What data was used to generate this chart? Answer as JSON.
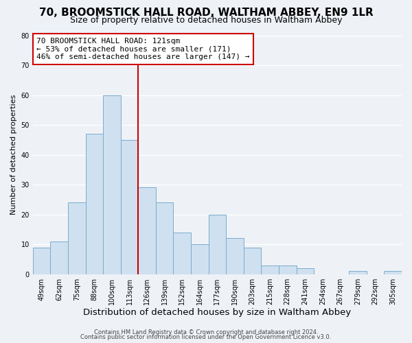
{
  "title1": "70, BROOMSTICK HALL ROAD, WALTHAM ABBEY, EN9 1LR",
  "title2": "Size of property relative to detached houses in Waltham Abbey",
  "xlabel": "Distribution of detached houses by size in Waltham Abbey",
  "ylabel": "Number of detached properties",
  "footer1": "Contains HM Land Registry data © Crown copyright and database right 2024.",
  "footer2": "Contains public sector information licensed under the Open Government Licence v3.0.",
  "bin_labels": [
    "49sqm",
    "62sqm",
    "75sqm",
    "88sqm",
    "100sqm",
    "113sqm",
    "126sqm",
    "139sqm",
    "152sqm",
    "164sqm",
    "177sqm",
    "190sqm",
    "203sqm",
    "215sqm",
    "228sqm",
    "241sqm",
    "254sqm",
    "267sqm",
    "279sqm",
    "292sqm",
    "305sqm"
  ],
  "bin_values": [
    9,
    11,
    24,
    47,
    60,
    45,
    29,
    24,
    14,
    10,
    20,
    12,
    9,
    3,
    3,
    2,
    0,
    0,
    1,
    0,
    1
  ],
  "bar_color": "#cfe0f0",
  "bar_edge_color": "#7aaccc",
  "vline_color": "#cc0000",
  "annotation_text": "70 BROOMSTICK HALL ROAD: 121sqm\n← 53% of detached houses are smaller (171)\n46% of semi-detached houses are larger (147) →",
  "annotation_box_color": "#ffffff",
  "annotation_box_edge": "#cc0000",
  "ylim": [
    0,
    80
  ],
  "yticks": [
    0,
    10,
    20,
    30,
    40,
    50,
    60,
    70,
    80
  ],
  "background_color": "#eef2f7",
  "plot_bg_color": "#eef2f7",
  "grid_color": "#ffffff",
  "title1_fontsize": 11,
  "title2_fontsize": 9,
  "xlabel_fontsize": 9.5,
  "ylabel_fontsize": 8,
  "tick_fontsize": 7,
  "annotation_fontsize": 8,
  "footer_fontsize": 6
}
